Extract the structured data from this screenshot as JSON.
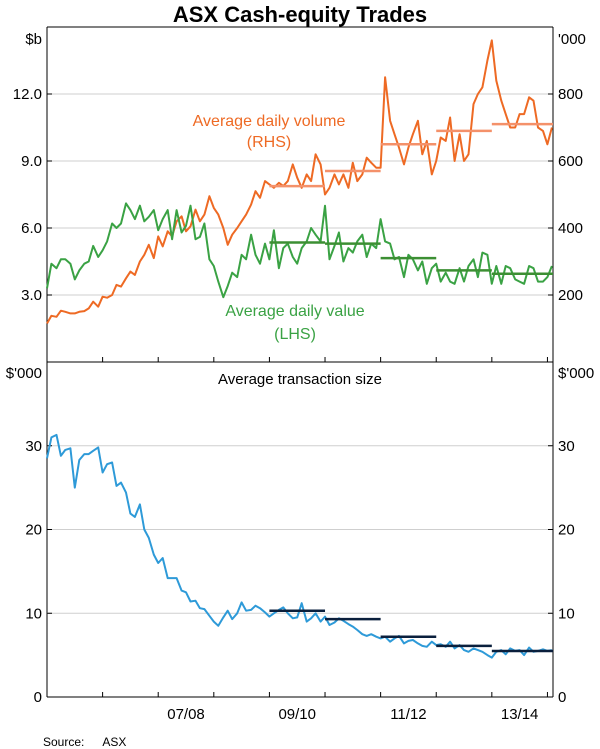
{
  "title": "ASX Cash-equity Trades",
  "source_label": "Source:",
  "source_value": "ASX",
  "colors": {
    "orange": "#ee6a24",
    "green": "#3aa244",
    "blue": "#2e9ad8",
    "light_orange": "#f4916a",
    "dark_green": "#3c8f33",
    "navy": "#0a1f3c",
    "axis": "#000000",
    "grid": "#cfcfcf"
  },
  "chart_data": [
    {
      "type": "line",
      "title": "",
      "x_tick_labels": [
        "07/08",
        "09/10",
        "11/12",
        "13/14"
      ],
      "x_tick_positions": [
        2007.5,
        2009.5,
        2011.5,
        2013.5
      ],
      "xlim": [
        2005.0,
        2014.1
      ],
      "left_axis": {
        "label": "$b",
        "ylim": [
          0,
          15
        ],
        "ticks": [
          "3.0",
          "6.0",
          "9.0",
          "12.0"
        ]
      },
      "right_axis": {
        "label": "'000",
        "ylim": [
          0,
          1000
        ],
        "ticks": [
          "200",
          "400",
          "600",
          "800"
        ]
      },
      "annotations": {
        "volume": "Average daily volume",
        "volume_axis": "(RHS)",
        "value": "Average daily value",
        "value_axis": "(LHS)"
      },
      "series": [
        {
          "name": "Average daily volume",
          "axis": "right",
          "x": [
            2005.0,
            2005.08,
            2005.17,
            2005.25,
            2005.33,
            2005.42,
            2005.5,
            2005.58,
            2005.67,
            2005.75,
            2005.83,
            2005.92,
            2006.0,
            2006.08,
            2006.17,
            2006.25,
            2006.33,
            2006.42,
            2006.5,
            2006.58,
            2006.67,
            2006.75,
            2006.83,
            2006.92,
            2007.0,
            2007.08,
            2007.17,
            2007.25,
            2007.33,
            2007.42,
            2007.5,
            2007.58,
            2007.67,
            2007.75,
            2007.83,
            2007.92,
            2008.0,
            2008.08,
            2008.17,
            2008.25,
            2008.33,
            2008.42,
            2008.5,
            2008.58,
            2008.67,
            2008.75,
            2008.83,
            2008.92,
            2009.0,
            2009.08,
            2009.17,
            2009.25,
            2009.33,
            2009.42,
            2009.5,
            2009.58,
            2009.67,
            2009.75,
            2009.83,
            2009.92,
            2010.0,
            2010.08,
            2010.17,
            2010.25,
            2010.33,
            2010.42,
            2010.5,
            2010.58,
            2010.67,
            2010.75,
            2010.83,
            2010.92,
            2011.0,
            2011.08,
            2011.17,
            2011.25,
            2011.33,
            2011.42,
            2011.5,
            2011.58,
            2011.67,
            2011.75,
            2011.83,
            2011.92,
            2012.0,
            2012.08,
            2012.17,
            2012.25,
            2012.33,
            2012.42,
            2012.5,
            2012.58,
            2012.67,
            2012.75,
            2012.83,
            2012.92,
            2013.0,
            2013.08,
            2013.17,
            2013.25,
            2013.33,
            2013.42,
            2013.5,
            2013.58,
            2013.67,
            2013.75,
            2013.83,
            2013.92,
            2014.0,
            2014.08
          ],
          "values": [
            115,
            138,
            135,
            153,
            150,
            145,
            145,
            150,
            152,
            160,
            180,
            165,
            195,
            192,
            200,
            230,
            225,
            250,
            270,
            260,
            300,
            320,
            350,
            310,
            375,
            345,
            390,
            375,
            420,
            435,
            390,
            405,
            455,
            420,
            440,
            495,
            460,
            440,
            400,
            350,
            380,
            400,
            420,
            440,
            470,
            510,
            490,
            540,
            530,
            520,
            535,
            525,
            540,
            590,
            550,
            520,
            560,
            540,
            620,
            590,
            500,
            520,
            560,
            530,
            560,
            520,
            595,
            540,
            560,
            610,
            595,
            580,
            580,
            850,
            720,
            680,
            640,
            590,
            640,
            680,
            720,
            620,
            660,
            560,
            600,
            670,
            660,
            730,
            600,
            680,
            600,
            620,
            770,
            800,
            820,
            900,
            960,
            840,
            780,
            740,
            700,
            700,
            740,
            740,
            790,
            780,
            700,
            690,
            650,
            700
          ]
        },
        {
          "name": "Average daily value",
          "axis": "left",
          "x": [
            2005.0,
            2005.08,
            2005.17,
            2005.25,
            2005.33,
            2005.42,
            2005.5,
            2005.58,
            2005.67,
            2005.75,
            2005.83,
            2005.92,
            2006.0,
            2006.08,
            2006.17,
            2006.25,
            2006.33,
            2006.42,
            2006.5,
            2006.58,
            2006.67,
            2006.75,
            2006.83,
            2006.92,
            2007.0,
            2007.08,
            2007.17,
            2007.25,
            2007.33,
            2007.42,
            2007.5,
            2007.58,
            2007.67,
            2007.75,
            2007.83,
            2007.92,
            2008.0,
            2008.08,
            2008.17,
            2008.25,
            2008.33,
            2008.42,
            2008.5,
            2008.58,
            2008.67,
            2008.75,
            2008.83,
            2008.92,
            2009.0,
            2009.08,
            2009.17,
            2009.25,
            2009.33,
            2009.42,
            2009.5,
            2009.58,
            2009.67,
            2009.75,
            2009.83,
            2009.92,
            2010.0,
            2010.08,
            2010.17,
            2010.25,
            2010.33,
            2010.42,
            2010.5,
            2010.58,
            2010.67,
            2010.75,
            2010.83,
            2010.92,
            2011.0,
            2011.08,
            2011.17,
            2011.25,
            2011.33,
            2011.42,
            2011.5,
            2011.58,
            2011.67,
            2011.75,
            2011.83,
            2011.92,
            2012.0,
            2012.08,
            2012.17,
            2012.25,
            2012.33,
            2012.42,
            2012.5,
            2012.58,
            2012.67,
            2012.75,
            2012.83,
            2012.92,
            2013.0,
            2013.08,
            2013.17,
            2013.25,
            2013.33,
            2013.42,
            2013.5,
            2013.58,
            2013.67,
            2013.75,
            2013.83,
            2013.92,
            2014.0,
            2014.08
          ],
          "values": [
            3.3,
            4.4,
            4.2,
            4.6,
            4.6,
            4.4,
            3.7,
            4.1,
            4.4,
            4.5,
            5.2,
            4.7,
            5.0,
            5.4,
            6.2,
            6.0,
            6.2,
            7.1,
            6.8,
            6.4,
            7.0,
            6.3,
            6.5,
            6.8,
            5.9,
            6.4,
            6.8,
            5.5,
            6.8,
            5.8,
            6.1,
            7.0,
            5.5,
            5.6,
            6.2,
            4.6,
            4.3,
            3.6,
            2.9,
            3.4,
            4.0,
            3.8,
            4.8,
            4.6,
            5.7,
            4.8,
            4.4,
            5.3,
            4.6,
            5.9,
            4.2,
            5.1,
            5.3,
            4.7,
            4.4,
            5.1,
            5.4,
            6.0,
            5.7,
            5.4,
            7.0,
            4.6,
            5.2,
            5.8,
            4.5,
            5.1,
            4.9,
            5.4,
            5.7,
            4.7,
            5.3,
            5.1,
            6.4,
            5.4,
            5.3,
            4.6,
            4.7,
            3.8,
            4.8,
            4.6,
            4.1,
            4.5,
            3.5,
            4.2,
            4.4,
            3.6,
            4.0,
            3.6,
            3.5,
            4.2,
            3.6,
            4.3,
            4.6,
            3.8,
            4.9,
            4.8,
            3.5,
            4.3,
            3.5,
            4.3,
            4.2,
            3.7,
            3.6,
            3.5,
            4.3,
            4.2,
            3.6,
            3.6,
            3.8,
            4.3
          ]
        }
      ],
      "period_averages": [
        {
          "name": "volume average",
          "axis": "right",
          "segments": [
            {
              "x": [
                2009.0,
                2010.0
              ],
              "y": 525
            },
            {
              "x": [
                2010.0,
                2011.0
              ],
              "y": 570
            },
            {
              "x": [
                2011.0,
                2012.0
              ],
              "y": 650
            },
            {
              "x": [
                2012.0,
                2013.0
              ],
              "y": 690
            },
            {
              "x": [
                2013.0,
                2014.1
              ],
              "y": 710
            }
          ]
        },
        {
          "name": "value average",
          "axis": "left",
          "segments": [
            {
              "x": [
                2009.0,
                2010.0
              ],
              "y": 5.35
            },
            {
              "x": [
                2010.0,
                2011.0
              ],
              "y": 5.3
            },
            {
              "x": [
                2011.0,
                2012.0
              ],
              "y": 4.65
            },
            {
              "x": [
                2012.0,
                2013.0
              ],
              "y": 4.1
            },
            {
              "x": [
                2013.0,
                2014.1
              ],
              "y": 3.95
            }
          ]
        }
      ]
    },
    {
      "type": "line",
      "title": "Average transaction size",
      "x_tick_labels": [
        "07/08",
        "09/10",
        "11/12",
        "13/14"
      ],
      "x_tick_positions": [
        2007.5,
        2009.5,
        2011.5,
        2013.5
      ],
      "xlim": [
        2005.0,
        2014.1
      ],
      "left_axis": {
        "label": "$'000",
        "ylim": [
          0,
          40
        ],
        "ticks": [
          "0",
          "10",
          "20",
          "30"
        ]
      },
      "right_axis": {
        "label": "$'000",
        "ylim": [
          0,
          40
        ],
        "ticks": [
          "0",
          "10",
          "20",
          "30"
        ]
      },
      "series": [
        {
          "name": "Average transaction size",
          "axis": "left",
          "x": [
            2005.0,
            2005.08,
            2005.17,
            2005.25,
            2005.33,
            2005.42,
            2005.5,
            2005.58,
            2005.67,
            2005.75,
            2005.83,
            2005.92,
            2006.0,
            2006.08,
            2006.17,
            2006.25,
            2006.33,
            2006.42,
            2006.5,
            2006.58,
            2006.67,
            2006.75,
            2006.83,
            2006.92,
            2007.0,
            2007.08,
            2007.17,
            2007.25,
            2007.33,
            2007.42,
            2007.5,
            2007.58,
            2007.67,
            2007.75,
            2007.83,
            2007.92,
            2008.0,
            2008.08,
            2008.17,
            2008.25,
            2008.33,
            2008.42,
            2008.5,
            2008.58,
            2008.67,
            2008.75,
            2008.83,
            2008.92,
            2009.0,
            2009.08,
            2009.17,
            2009.25,
            2009.33,
            2009.42,
            2009.5,
            2009.58,
            2009.67,
            2009.75,
            2009.83,
            2009.92,
            2010.0,
            2010.08,
            2010.17,
            2010.25,
            2010.33,
            2010.42,
            2010.5,
            2010.58,
            2010.67,
            2010.75,
            2010.83,
            2010.92,
            2011.0,
            2011.08,
            2011.17,
            2011.25,
            2011.33,
            2011.42,
            2011.5,
            2011.58,
            2011.67,
            2011.75,
            2011.83,
            2011.92,
            2012.0,
            2012.08,
            2012.17,
            2012.25,
            2012.33,
            2012.42,
            2012.5,
            2012.58,
            2012.67,
            2012.75,
            2012.83,
            2012.92,
            2013.0,
            2013.08,
            2013.17,
            2013.25,
            2013.33,
            2013.42,
            2013.5,
            2013.58,
            2013.67,
            2013.75,
            2013.83,
            2013.92,
            2014.0,
            2014.08
          ],
          "values": [
            28.5,
            31.0,
            31.3,
            28.8,
            29.5,
            29.7,
            25.0,
            28.3,
            29.0,
            29.0,
            29.4,
            29.8,
            26.8,
            27.8,
            28.0,
            25.2,
            25.6,
            24.4,
            21.9,
            21.5,
            23.0,
            20.0,
            19.0,
            17.0,
            16.0,
            16.6,
            14.2,
            14.2,
            14.2,
            12.7,
            12.5,
            11.4,
            11.5,
            10.6,
            10.5,
            9.7,
            9.0,
            8.5,
            9.5,
            10.3,
            9.3,
            10.0,
            11.3,
            10.3,
            10.4,
            10.9,
            10.6,
            10.1,
            9.6,
            10.0,
            10.4,
            10.7,
            10.0,
            9.4,
            9.5,
            11.2,
            9.0,
            9.4,
            10.0,
            9.0,
            9.6,
            8.6,
            8.9,
            9.4,
            9.1,
            8.7,
            8.4,
            8.0,
            7.5,
            7.3,
            7.5,
            7.2,
            7.0,
            7.2,
            6.6,
            7.0,
            7.3,
            6.4,
            6.7,
            6.8,
            6.4,
            6.1,
            6.0,
            6.6,
            6.2,
            6.3,
            6.0,
            6.6,
            5.8,
            6.2,
            5.6,
            5.4,
            5.8,
            5.6,
            5.4,
            5.0,
            4.7,
            5.4,
            5.6,
            5.1,
            5.8,
            5.5,
            5.6,
            5.0,
            5.9,
            5.4,
            5.5,
            5.7,
            5.5,
            5.6
          ]
        }
      ],
      "period_averages": [
        {
          "name": "transaction size average",
          "axis": "left",
          "segments": [
            {
              "x": [
                2009.0,
                2010.0
              ],
              "y": 10.3
            },
            {
              "x": [
                2010.0,
                2011.0
              ],
              "y": 9.3
            },
            {
              "x": [
                2011.0,
                2012.0
              ],
              "y": 7.2
            },
            {
              "x": [
                2012.0,
                2013.0
              ],
              "y": 6.1
            },
            {
              "x": [
                2013.0,
                2014.1
              ],
              "y": 5.5
            }
          ]
        }
      ]
    }
  ]
}
